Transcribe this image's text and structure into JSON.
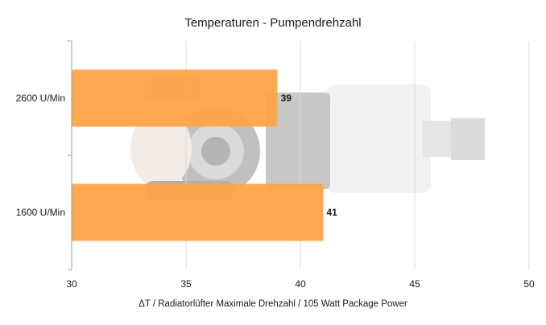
{
  "chart_data": {
    "type": "bar",
    "orientation": "horizontal",
    "title": "Temperaturen - Pumpendrehzahl",
    "xlabel": "ΔT / Radiatorlüfter Maximale Drehzahl / 105 Watt Package Power",
    "ylabel": "",
    "categories": [
      "2600 U/Min",
      "1600 U/Min"
    ],
    "values": [
      39,
      41
    ],
    "xlim": [
      30,
      50
    ],
    "xticks": [
      30,
      35,
      40,
      45,
      50
    ],
    "grid": true,
    "legend": "none",
    "bar_color": "#FFA54A",
    "data_labels": [
      "39",
      "41"
    ],
    "background_image": "water-pump-product-photo"
  }
}
